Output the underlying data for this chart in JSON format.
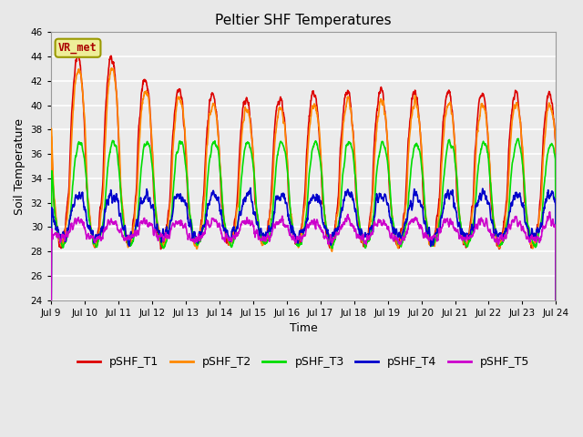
{
  "title": "Peltier SHF Temperatures",
  "xlabel": "Time",
  "ylabel": "Soil Temperature",
  "ylim": [
    24,
    46
  ],
  "yticks": [
    24,
    26,
    28,
    30,
    32,
    34,
    36,
    38,
    40,
    42,
    44,
    46
  ],
  "xtick_labels": [
    "Jul 9",
    "Jul 10",
    "Jul 11",
    "Jul 12",
    "Jul 13",
    "Jul 14",
    "Jul 15",
    "Jul 16",
    "Jul 17",
    "Jul 18",
    "Jul 19",
    "Jul 20",
    "Jul 21",
    "Jul 22",
    "Jul 23",
    "Jul 24"
  ],
  "legend_labels": [
    "pSHF_T1",
    "pSHF_T2",
    "pSHF_T3",
    "pSHF_T4",
    "pSHF_T5"
  ],
  "line_colors": [
    "#dd0000",
    "#ff8800",
    "#00dd00",
    "#0000cc",
    "#cc00cc"
  ],
  "line_widths": [
    1.2,
    1.2,
    1.2,
    1.2,
    1.2
  ],
  "annotation_text": "VR_met",
  "annotation_color": "#aa0000",
  "annotation_bg": "#eeee99",
  "annotation_border": "#999900",
  "background_color": "#e8e8e8",
  "plot_bg_color": "#ebebeb",
  "grid_color": "#ffffff",
  "n_days": 15,
  "points_per_day": 144,
  "seed": 42
}
